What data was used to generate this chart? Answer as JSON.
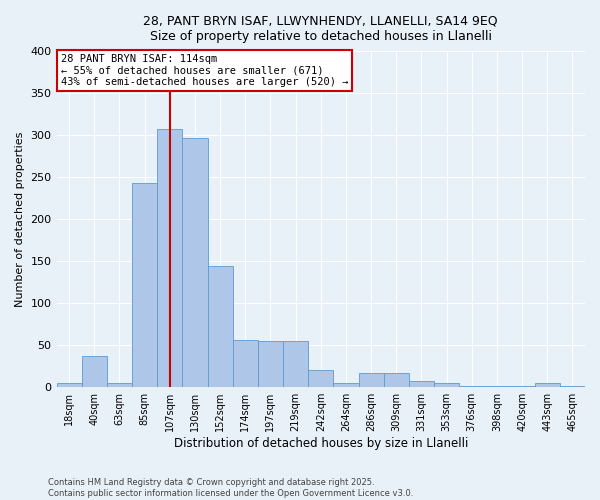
{
  "title_line1": "28, PANT BRYN ISAF, LLWYNHENDY, LLANELLI, SA14 9EQ",
  "title_line2": "Size of property relative to detached houses in Llanelli",
  "xlabel": "Distribution of detached houses by size in Llanelli",
  "ylabel": "Number of detached properties",
  "bin_labels": [
    "18sqm",
    "40sqm",
    "63sqm",
    "85sqm",
    "107sqm",
    "130sqm",
    "152sqm",
    "174sqm",
    "197sqm",
    "219sqm",
    "242sqm",
    "264sqm",
    "286sqm",
    "309sqm",
    "331sqm",
    "353sqm",
    "376sqm",
    "398sqm",
    "420sqm",
    "443sqm",
    "465sqm"
  ],
  "bar_values": [
    5,
    37,
    5,
    243,
    307,
    296,
    144,
    56,
    55,
    55,
    20,
    5,
    17,
    17,
    7,
    5,
    2,
    2,
    2,
    5,
    2
  ],
  "bar_color": "#aec6e8",
  "bar_edge_color": "#5b9bd5",
  "vline_x": 4,
  "vline_color": "#cc0000",
  "annotation_text": "28 PANT BRYN ISAF: 114sqm\n← 55% of detached houses are smaller (671)\n43% of semi-detached houses are larger (520) →",
  "annotation_box_color": "#ffffff",
  "annotation_box_edge_color": "#cc0000",
  "ylim": [
    0,
    400
  ],
  "yticks": [
    0,
    50,
    100,
    150,
    200,
    250,
    300,
    350,
    400
  ],
  "background_color": "#e8f0f8",
  "footer_line1": "Contains HM Land Registry data © Crown copyright and database right 2025.",
  "footer_line2": "Contains public sector information licensed under the Open Government Licence v3.0."
}
